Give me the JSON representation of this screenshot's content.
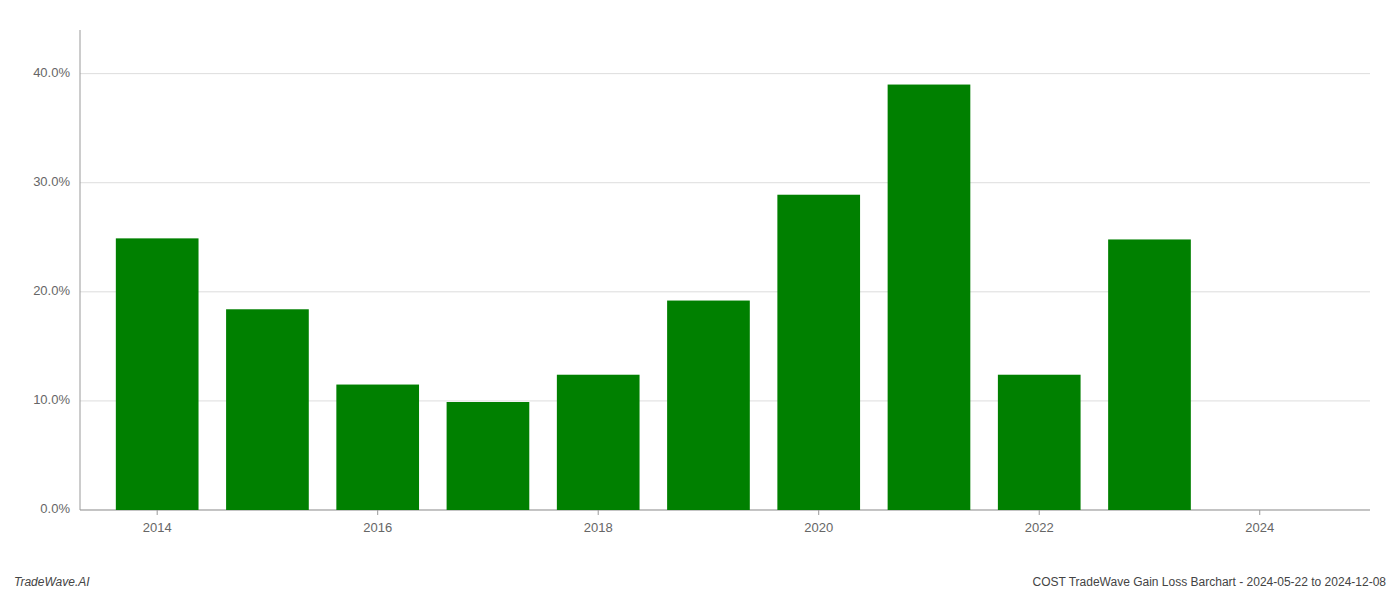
{
  "chart_data": {
    "type": "bar",
    "x": [
      2014,
      2015,
      2016,
      2017,
      2018,
      2019,
      2020,
      2021,
      2022,
      2023
    ],
    "values": [
      0.249,
      0.184,
      0.115,
      0.099,
      0.124,
      0.192,
      0.289,
      0.39,
      0.124,
      0.248
    ],
    "color": "#008000",
    "xlim": [
      2013.3,
      2025.0
    ],
    "xticks": [
      2014,
      2016,
      2018,
      2020,
      2022,
      2024
    ],
    "ylim": [
      0,
      0.44
    ],
    "yticks": [
      {
        "value": 0.0,
        "label": "0.0%"
      },
      {
        "value": 0.1,
        "label": "10.0%"
      },
      {
        "value": 0.2,
        "label": "20.0%"
      },
      {
        "value": 0.3,
        "label": "30.0%"
      },
      {
        "value": 0.4,
        "label": "40.0%"
      }
    ],
    "grid": true,
    "annotations": [
      "TradeWave.AI",
      "COST TradeWave Gain Loss Barchart - 2024-05-22 to 2024-12-08"
    ]
  }
}
